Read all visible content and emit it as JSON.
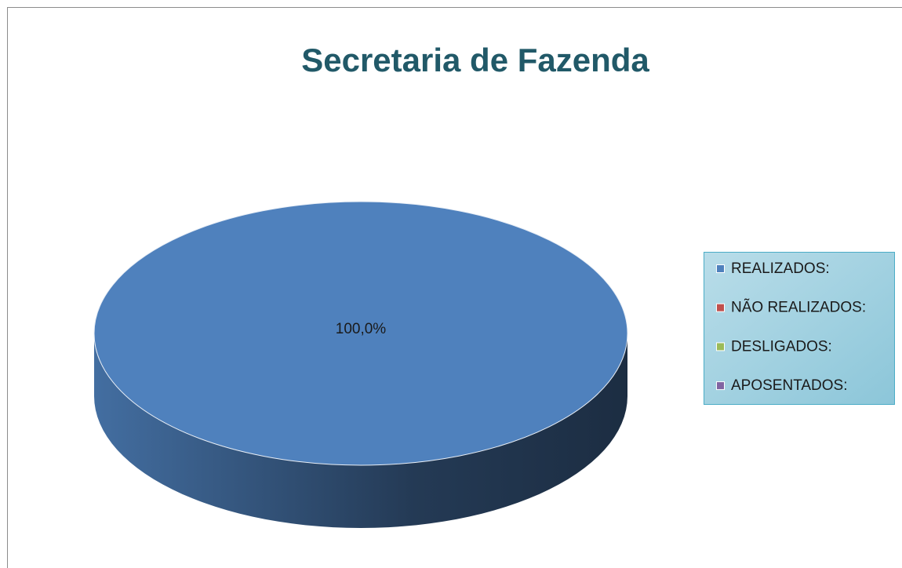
{
  "chart_data": {
    "type": "pie3d",
    "title": "Secretaria de Fazenda",
    "categories": [
      "REALIZADOS:",
      "NÃO REALIZADOS:",
      "DESLIGADOS:",
      "APOSENTADOS:"
    ],
    "values": [
      100,
      0,
      0,
      0
    ],
    "value_labels": [
      "100,0%",
      null,
      null,
      null
    ],
    "colors": [
      "#4f81bd",
      "#c0504d",
      "#9bbb59",
      "#8064a2"
    ],
    "legend": "right"
  }
}
